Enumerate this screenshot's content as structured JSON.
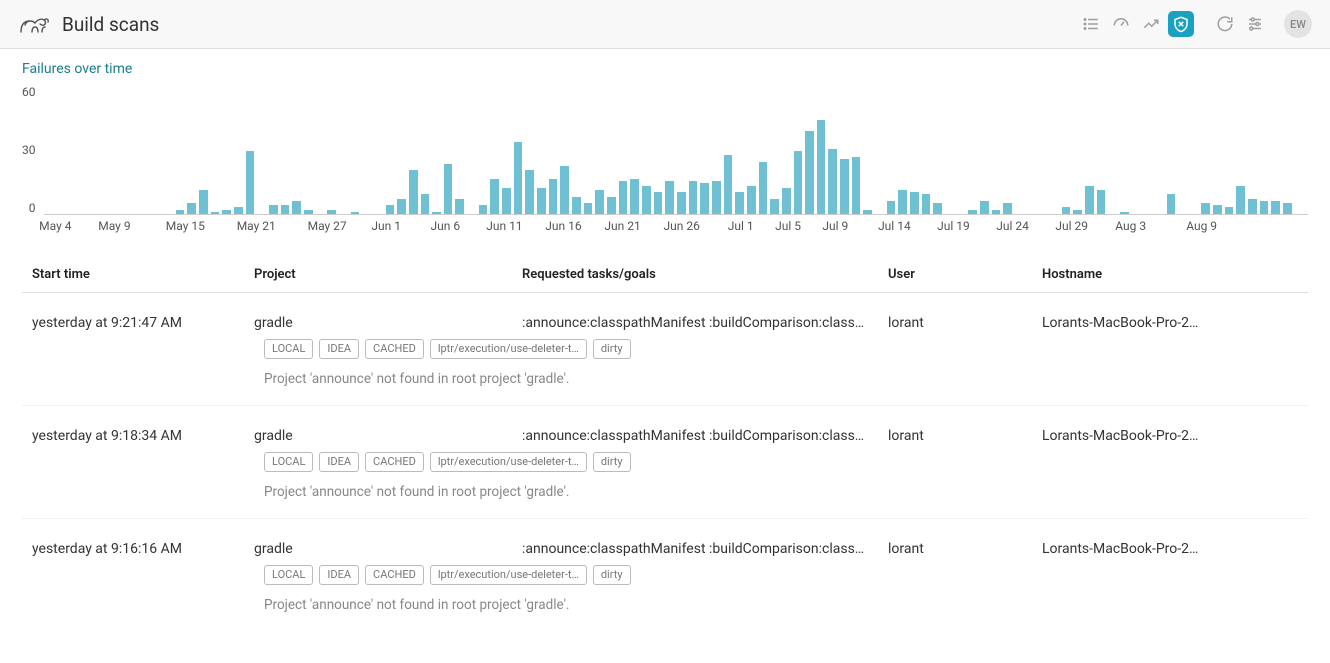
{
  "header": {
    "title": "Build scans",
    "avatar": "EW"
  },
  "chart": {
    "title": "Failures over time",
    "type": "bar",
    "ylim": [
      0,
      60
    ],
    "yticks": [
      60,
      30,
      0
    ],
    "bar_color": "#6fc0d3",
    "background": "#ffffff",
    "values": [
      0,
      0,
      0,
      0,
      0,
      0,
      0,
      0,
      0,
      0,
      0,
      2,
      5,
      11,
      1,
      2,
      3,
      29,
      0,
      4,
      4,
      6,
      2,
      0,
      2,
      0,
      1,
      0,
      0,
      4,
      7,
      20,
      9,
      1,
      23,
      7,
      0,
      4,
      16,
      12,
      33,
      20,
      12,
      16,
      22,
      8,
      5,
      11,
      8,
      15,
      16,
      13,
      10,
      15,
      10,
      15,
      14,
      15,
      27,
      10,
      13,
      24,
      7,
      12,
      29,
      38,
      43,
      30,
      25,
      26,
      2,
      0,
      6,
      11,
      10,
      9,
      5,
      0,
      0,
      2,
      6,
      2,
      5,
      0,
      0,
      0,
      0,
      3,
      2,
      13,
      11,
      0,
      1,
      0,
      0,
      0,
      9,
      0,
      0,
      5,
      4,
      3,
      13,
      7,
      6,
      6,
      5,
      0
    ],
    "xticks": [
      {
        "pos": 1,
        "label": "May 4"
      },
      {
        "pos": 6,
        "label": "May 9"
      },
      {
        "pos": 12,
        "label": "May 15"
      },
      {
        "pos": 18,
        "label": "May 21"
      },
      {
        "pos": 24,
        "label": "May 27"
      },
      {
        "pos": 29,
        "label": "Jun 1"
      },
      {
        "pos": 34,
        "label": "Jun 6"
      },
      {
        "pos": 39,
        "label": "Jun 11"
      },
      {
        "pos": 44,
        "label": "Jun 16"
      },
      {
        "pos": 49,
        "label": "Jun 21"
      },
      {
        "pos": 54,
        "label": "Jun 26"
      },
      {
        "pos": 59,
        "label": "Jul 1"
      },
      {
        "pos": 63,
        "label": "Jul 5"
      },
      {
        "pos": 67,
        "label": "Jul 9"
      },
      {
        "pos": 72,
        "label": "Jul 14"
      },
      {
        "pos": 77,
        "label": "Jul 19"
      },
      {
        "pos": 82,
        "label": "Jul 24"
      },
      {
        "pos": 87,
        "label": "Jul 29"
      },
      {
        "pos": 92,
        "label": "Aug 3"
      },
      {
        "pos": 98,
        "label": "Aug 9"
      }
    ]
  },
  "table": {
    "columns": {
      "start": "Start time",
      "project": "Project",
      "tasks": "Requested tasks/goals",
      "user": "User",
      "host": "Hostname"
    },
    "rows": [
      {
        "start": "yesterday at 9:21:47 AM",
        "project": "gradle",
        "tasks": ":announce:classpathManifest :buildComparison:class…",
        "user": "lorant",
        "host": "Lorants-MacBook-Pro-2…",
        "tags": [
          "LOCAL",
          "IDEA",
          "CACHED",
          "lptr/execution/use-deleter-t…",
          "dirty"
        ],
        "error": "Project 'announce' not found in root project 'gradle'."
      },
      {
        "start": "yesterday at 9:18:34 AM",
        "project": "gradle",
        "tasks": ":announce:classpathManifest :buildComparison:class…",
        "user": "lorant",
        "host": "Lorants-MacBook-Pro-2…",
        "tags": [
          "LOCAL",
          "IDEA",
          "CACHED",
          "lptr/execution/use-deleter-t…",
          "dirty"
        ],
        "error": "Project 'announce' not found in root project 'gradle'."
      },
      {
        "start": "yesterday at 9:16:16 AM",
        "project": "gradle",
        "tasks": ":announce:classpathManifest :buildComparison:class…",
        "user": "lorant",
        "host": "Lorants-MacBook-Pro-2…",
        "tags": [
          "LOCAL",
          "IDEA",
          "CACHED",
          "lptr/execution/use-deleter-t…",
          "dirty"
        ],
        "error": "Project 'announce' not found in root project 'gradle'."
      }
    ]
  }
}
